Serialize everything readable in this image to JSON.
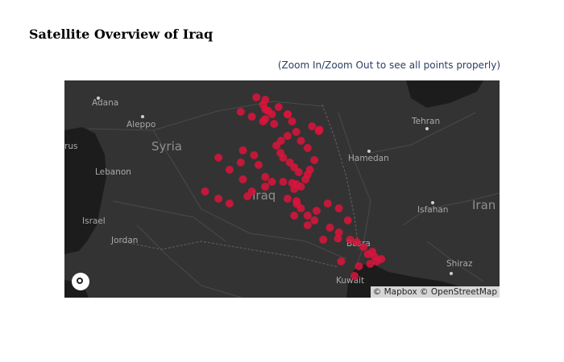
{
  "page": {
    "title": "Satellite Overview of Iraq",
    "subtitle": "(Zoom In/Zoom Out to see all points properly)"
  },
  "map": {
    "style": "dark",
    "marker_color": "#DC143C",
    "attribution": "© Mapbox © OpenStreetMap",
    "labels": {
      "adana": "Adana",
      "aleppo": "Aleppo",
      "syria": "Syria",
      "rus": "rus",
      "lebanon": "Lebanon",
      "israel": "Israel",
      "jordan": "Jordan",
      "tehran": "Tehran",
      "hamedan": "Hamedan",
      "isfahan": "Isfahan",
      "iran": "Iran",
      "iraq": "Iraq",
      "basra": "Basra",
      "kuwait": "Kuwait",
      "shiraz": "Shiraz"
    }
  },
  "chart_data": {
    "type": "scatter",
    "marker_color": "#DC143C",
    "points": [
      {
        "lat": 36.34,
        "lon": 43.13
      },
      {
        "lat": 36.4,
        "lon": 43.0
      },
      {
        "lat": 36.2,
        "lon": 43.3
      },
      {
        "lat": 36.6,
        "lon": 42.9
      },
      {
        "lat": 36.8,
        "lon": 43.0
      },
      {
        "lat": 36.9,
        "lon": 42.6
      },
      {
        "lat": 36.5,
        "lon": 43.6
      },
      {
        "lat": 36.2,
        "lon": 44.0
      },
      {
        "lat": 36.19,
        "lon": 44.01
      },
      {
        "lat": 35.5,
        "lon": 45.4
      },
      {
        "lat": 35.56,
        "lon": 45.43
      },
      {
        "lat": 35.7,
        "lon": 45.1
      },
      {
        "lat": 36.3,
        "lon": 41.9
      },
      {
        "lat": 36.1,
        "lon": 42.4
      },
      {
        "lat": 35.9,
        "lon": 42.9
      },
      {
        "lat": 35.8,
        "lon": 43.4
      },
      {
        "lat": 35.47,
        "lon": 44.39
      },
      {
        "lat": 35.3,
        "lon": 44.0
      },
      {
        "lat": 35.1,
        "lon": 43.7
      },
      {
        "lat": 34.9,
        "lon": 43.5
      },
      {
        "lat": 34.6,
        "lon": 43.68
      },
      {
        "lat": 34.4,
        "lon": 43.8
      },
      {
        "lat": 34.2,
        "lon": 44.1
      },
      {
        "lat": 34.0,
        "lon": 44.3
      },
      {
        "lat": 33.8,
        "lon": 44.5
      },
      {
        "lat": 33.7,
        "lon": 44.9
      },
      {
        "lat": 33.3,
        "lon": 44.4
      },
      {
        "lat": 33.35,
        "lon": 44.2
      },
      {
        "lat": 33.2,
        "lon": 44.6
      },
      {
        "lat": 33.1,
        "lon": 44.3
      },
      {
        "lat": 33.5,
        "lon": 44.8
      },
      {
        "lat": 33.9,
        "lon": 45.0
      },
      {
        "lat": 34.3,
        "lon": 45.2
      },
      {
        "lat": 34.8,
        "lon": 44.9
      },
      {
        "lat": 35.1,
        "lon": 44.6
      },
      {
        "lat": 33.4,
        "lon": 43.3
      },
      {
        "lat": 33.4,
        "lon": 43.8
      },
      {
        "lat": 33.2,
        "lon": 43.0
      },
      {
        "lat": 33.0,
        "lon": 42.4
      },
      {
        "lat": 33.5,
        "lon": 42.0
      },
      {
        "lat": 33.9,
        "lon": 41.4
      },
      {
        "lat": 34.2,
        "lon": 41.9
      },
      {
        "lat": 34.4,
        "lon": 40.9
      },
      {
        "lat": 33.0,
        "lon": 40.3
      },
      {
        "lat": 32.7,
        "lon": 40.9
      },
      {
        "lat": 32.5,
        "lon": 41.4
      },
      {
        "lat": 32.8,
        "lon": 42.2
      },
      {
        "lat": 32.7,
        "lon": 44.0
      },
      {
        "lat": 32.6,
        "lon": 44.4
      },
      {
        "lat": 32.48,
        "lon": 44.42
      },
      {
        "lat": 32.3,
        "lon": 44.6
      },
      {
        "lat": 32.0,
        "lon": 44.3
      },
      {
        "lat": 32.0,
        "lon": 44.9
      },
      {
        "lat": 32.2,
        "lon": 45.3
      },
      {
        "lat": 32.5,
        "lon": 45.8
      },
      {
        "lat": 31.8,
        "lon": 45.2
      },
      {
        "lat": 31.5,
        "lon": 45.9
      },
      {
        "lat": 31.3,
        "lon": 46.3
      },
      {
        "lat": 31.05,
        "lon": 46.26
      },
      {
        "lat": 31.0,
        "lon": 46.8
      },
      {
        "lat": 30.9,
        "lon": 47.1
      },
      {
        "lat": 30.7,
        "lon": 47.4
      },
      {
        "lat": 30.5,
        "lon": 47.8
      },
      {
        "lat": 30.4,
        "lon": 47.6
      },
      {
        "lat": 30.3,
        "lon": 47.9
      },
      {
        "lat": 30.1,
        "lon": 48.0
      },
      {
        "lat": 30.0,
        "lon": 47.7
      },
      {
        "lat": 30.2,
        "lon": 48.2
      },
      {
        "lat": 31.8,
        "lon": 46.7
      },
      {
        "lat": 32.3,
        "lon": 46.3
      },
      {
        "lat": 31.6,
        "lon": 44.9
      },
      {
        "lat": 31.0,
        "lon": 45.6
      },
      {
        "lat": 30.1,
        "lon": 46.4
      },
      {
        "lat": 29.9,
        "lon": 47.2
      },
      {
        "lat": 29.5,
        "lon": 47.0
      },
      {
        "lat": 34.1,
        "lon": 42.7
      },
      {
        "lat": 34.5,
        "lon": 42.5
      },
      {
        "lat": 34.7,
        "lon": 42.0
      },
      {
        "lat": 33.6,
        "lon": 43.0
      },
      {
        "lat": 36.0,
        "lon": 43.0
      },
      {
        "lat": 35.9,
        "lon": 44.2
      }
    ]
  }
}
